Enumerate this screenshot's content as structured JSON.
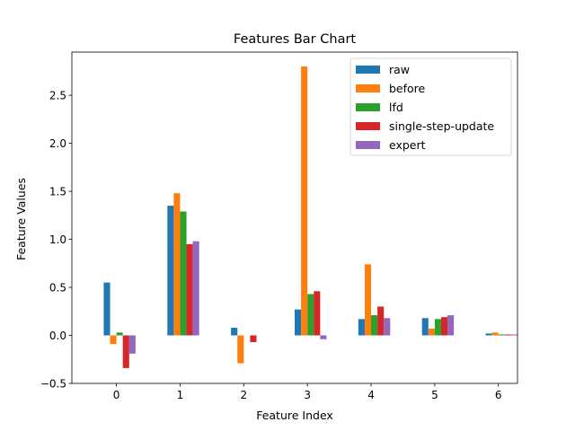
{
  "chart_data": {
    "type": "bar",
    "title": "Features Bar Chart",
    "xlabel": "Feature Index",
    "ylabel": "Feature Values",
    "categories": [
      "0",
      "1",
      "2",
      "3",
      "4",
      "5",
      "6"
    ],
    "ylim": [
      -0.5,
      2.95
    ],
    "yticks": [
      "−0.5",
      "0.0",
      "0.5",
      "1.0",
      "1.5",
      "2.0",
      "2.5"
    ],
    "ytick_values": [
      -0.5,
      0.0,
      0.5,
      1.0,
      1.5,
      2.0,
      2.5
    ],
    "grid": false,
    "legend_position": "top-right",
    "series": [
      {
        "name": "raw",
        "color": "#1f77b4",
        "values": [
          0.55,
          1.35,
          0.08,
          0.27,
          0.17,
          0.18,
          0.02
        ]
      },
      {
        "name": "before",
        "color": "#ff7f0e",
        "values": [
          -0.09,
          1.48,
          -0.29,
          2.8,
          0.74,
          0.07,
          0.03
        ]
      },
      {
        "name": "lfd",
        "color": "#2ca02c",
        "values": [
          0.03,
          1.29,
          0.0,
          0.43,
          0.21,
          0.17,
          0.01
        ]
      },
      {
        "name": "single-step-update",
        "color": "#d62728",
        "values": [
          -0.34,
          0.95,
          -0.07,
          0.46,
          0.3,
          0.19,
          0.01
        ]
      },
      {
        "name": "expert",
        "color": "#9467bd",
        "values": [
          -0.19,
          0.98,
          0.0,
          -0.04,
          0.18,
          0.21,
          0.01
        ]
      }
    ]
  }
}
